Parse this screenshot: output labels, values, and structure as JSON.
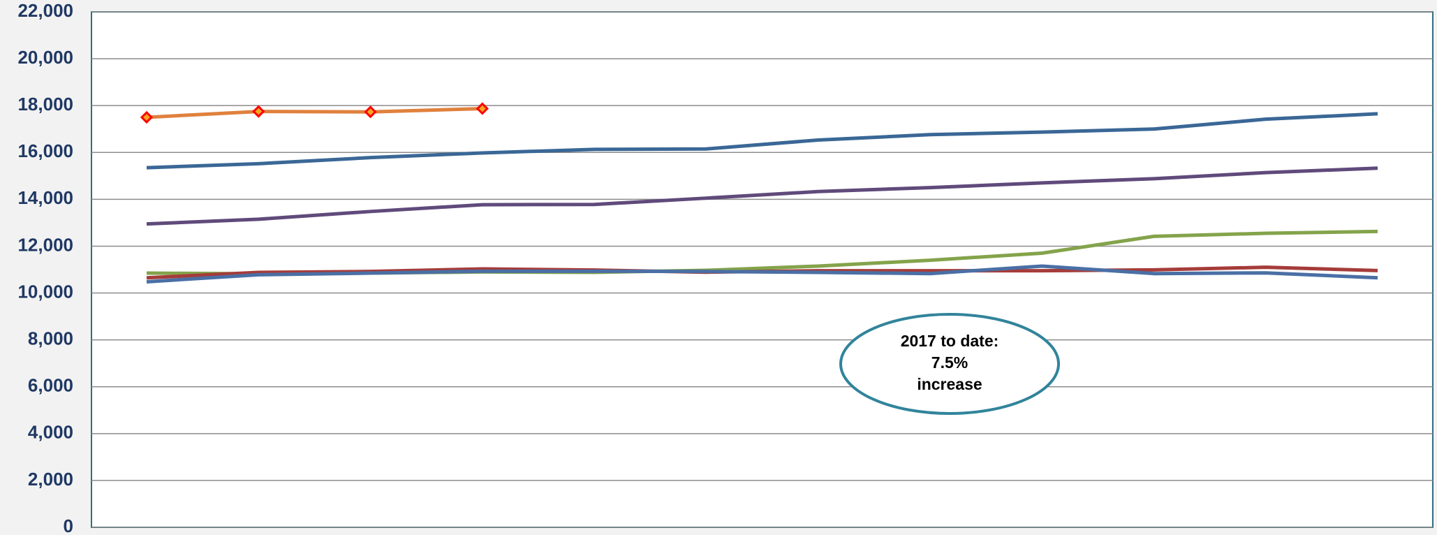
{
  "chart_data": {
    "type": "line",
    "categories": [
      null,
      null,
      null,
      null,
      null,
      null,
      null,
      null,
      null,
      null,
      null,
      null
    ],
    "series": [
      {
        "color": "#e0813d",
        "marker": "diamond",
        "values": [
          17500,
          17750,
          17730,
          17870,
          null,
          null,
          null,
          null,
          null,
          null,
          null,
          null
        ]
      },
      {
        "color": "#3a6796",
        "values": [
          15350,
          15520,
          15780,
          15980,
          16130,
          16150,
          16530,
          16760,
          16870,
          17000,
          17420,
          17650
        ]
      },
      {
        "color": "#604a7b",
        "values": [
          12950,
          13150,
          13480,
          13770,
          13780,
          14050,
          14330,
          14500,
          14700,
          14880,
          15140,
          15330
        ]
      },
      {
        "color": "#84a34b",
        "values": [
          10850,
          10820,
          10850,
          10900,
          10880,
          10970,
          11150,
          11400,
          11700,
          12420,
          12550,
          12630
        ]
      },
      {
        "color": "#a53c3a",
        "values": [
          10650,
          10880,
          10920,
          11030,
          10980,
          10890,
          10950,
          10950,
          10950,
          10990,
          11100,
          10960
        ]
      },
      {
        "color": "#4a6fa5",
        "values": [
          10480,
          10780,
          10850,
          10930,
          10930,
          10920,
          10880,
          10830,
          11150,
          10830,
          10860,
          10650
        ]
      }
    ],
    "ylim": [
      0,
      22000
    ],
    "yticks": [
      0,
      {
        "value": 2000,
        "label": "2,000"
      },
      {
        "value": 4000,
        "label": "4,000"
      },
      {
        "value": 6000,
        "label": "6,000"
      },
      {
        "value": 8000,
        "label": "8,000"
      },
      {
        "value": 10000,
        "label": "10,000"
      },
      {
        "value": 12000,
        "label": "12,000"
      },
      {
        "value": 14000,
        "label": "14,000"
      },
      {
        "value": 16000,
        "label": "16,000"
      },
      {
        "value": 18000,
        "label": "18,000"
      },
      {
        "value": 20000,
        "label": "20,000"
      },
      {
        "value": 22000,
        "label": "22,000"
      }
    ],
    "grid": true,
    "annotation": [
      "2017 to date:",
      "7.5%",
      "increase"
    ]
  }
}
